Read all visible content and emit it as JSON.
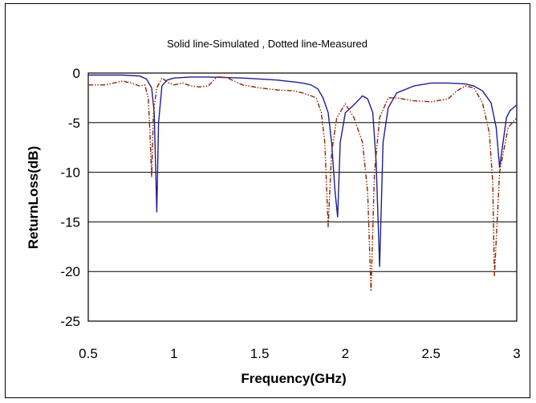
{
  "chart_data": {
    "type": "line",
    "title": "Solid line-Simulated , Dotted line-Measured",
    "xlabel": "Frequency(GHz)",
    "ylabel": "ReturnLoss(dB)",
    "xlim": [
      0.5,
      3
    ],
    "ylim": [
      -25,
      0
    ],
    "xticks": [
      0.5,
      1,
      1.5,
      2,
      2.5,
      3
    ],
    "xtick_labels": [
      "0.5",
      "1",
      "1.5",
      "2",
      "2.5",
      "3"
    ],
    "yticks": [
      0,
      -5,
      -10,
      -15,
      -20,
      -25
    ],
    "ytick_labels": [
      "0",
      "-5",
      "-10",
      "-15",
      "-20",
      "-25"
    ],
    "grid": "horizontal",
    "legend": "none",
    "series": [
      {
        "style": "solid",
        "color": "#1f1f8f",
        "x": [
          0.5,
          0.6,
          0.7,
          0.8,
          0.84,
          0.87,
          0.885,
          0.9,
          0.91,
          0.93,
          0.96,
          1.0,
          1.1,
          1.2,
          1.3,
          1.4,
          1.5,
          1.6,
          1.7,
          1.75,
          1.8,
          1.84,
          1.87,
          1.9,
          1.92,
          1.94,
          1.955,
          1.97,
          2.0,
          2.05,
          2.1,
          2.13,
          2.16,
          2.18,
          2.2,
          2.22,
          2.25,
          2.3,
          2.4,
          2.5,
          2.6,
          2.7,
          2.75,
          2.8,
          2.85,
          2.88,
          2.9,
          2.92,
          2.94,
          2.96,
          3.0
        ],
        "y": [
          -0.2,
          -0.2,
          -0.2,
          -0.3,
          -0.6,
          -1.5,
          -4.0,
          -14.0,
          -5.0,
          -1.3,
          -0.7,
          -0.5,
          -0.4,
          -0.4,
          -0.45,
          -0.5,
          -0.6,
          -0.7,
          -0.9,
          -1.0,
          -1.2,
          -1.6,
          -2.5,
          -4.0,
          -7.0,
          -12.0,
          -14.5,
          -7.0,
          -4.0,
          -3.2,
          -2.3,
          -2.6,
          -4.0,
          -9.0,
          -19.5,
          -7.0,
          -3.5,
          -2.0,
          -1.3,
          -1.0,
          -1.0,
          -1.1,
          -1.3,
          -1.8,
          -3.0,
          -5.5,
          -9.5,
          -7.0,
          -4.5,
          -3.8,
          -3.2
        ]
      },
      {
        "style": "dash-dot-dot",
        "color": "#8b2500",
        "x": [
          0.5,
          0.6,
          0.7,
          0.75,
          0.8,
          0.83,
          0.85,
          0.86,
          0.87,
          0.88,
          0.9,
          0.93,
          0.97,
          1.0,
          1.05,
          1.1,
          1.15,
          1.2,
          1.25,
          1.3,
          1.4,
          1.5,
          1.6,
          1.7,
          1.75,
          1.8,
          1.83,
          1.86,
          1.88,
          1.9,
          1.92,
          1.95,
          2.0,
          2.05,
          2.1,
          2.13,
          2.15,
          2.17,
          2.2,
          2.25,
          2.3,
          2.4,
          2.5,
          2.6,
          2.65,
          2.7,
          2.75,
          2.8,
          2.84,
          2.86,
          2.87,
          2.9,
          2.95,
          3.0
        ],
        "y": [
          -1.2,
          -1.2,
          -0.8,
          -1.0,
          -1.3,
          -1.2,
          -2.5,
          -6.0,
          -10.5,
          -4.0,
          -1.5,
          -0.5,
          -1.0,
          -1.2,
          -1.0,
          -1.3,
          -1.4,
          -1.3,
          -0.4,
          -0.4,
          -1.2,
          -1.5,
          -1.7,
          -1.8,
          -2.0,
          -2.3,
          -2.5,
          -4.0,
          -7.0,
          -15.5,
          -8.0,
          -4.5,
          -3.1,
          -4.5,
          -7.0,
          -12.0,
          -22.0,
          -10.0,
          -4.5,
          -2.5,
          -2.5,
          -2.8,
          -2.9,
          -2.6,
          -1.8,
          -1.3,
          -1.5,
          -3.0,
          -6.0,
          -11.0,
          -20.5,
          -10.0,
          -5.5,
          -4.5
        ]
      }
    ]
  }
}
